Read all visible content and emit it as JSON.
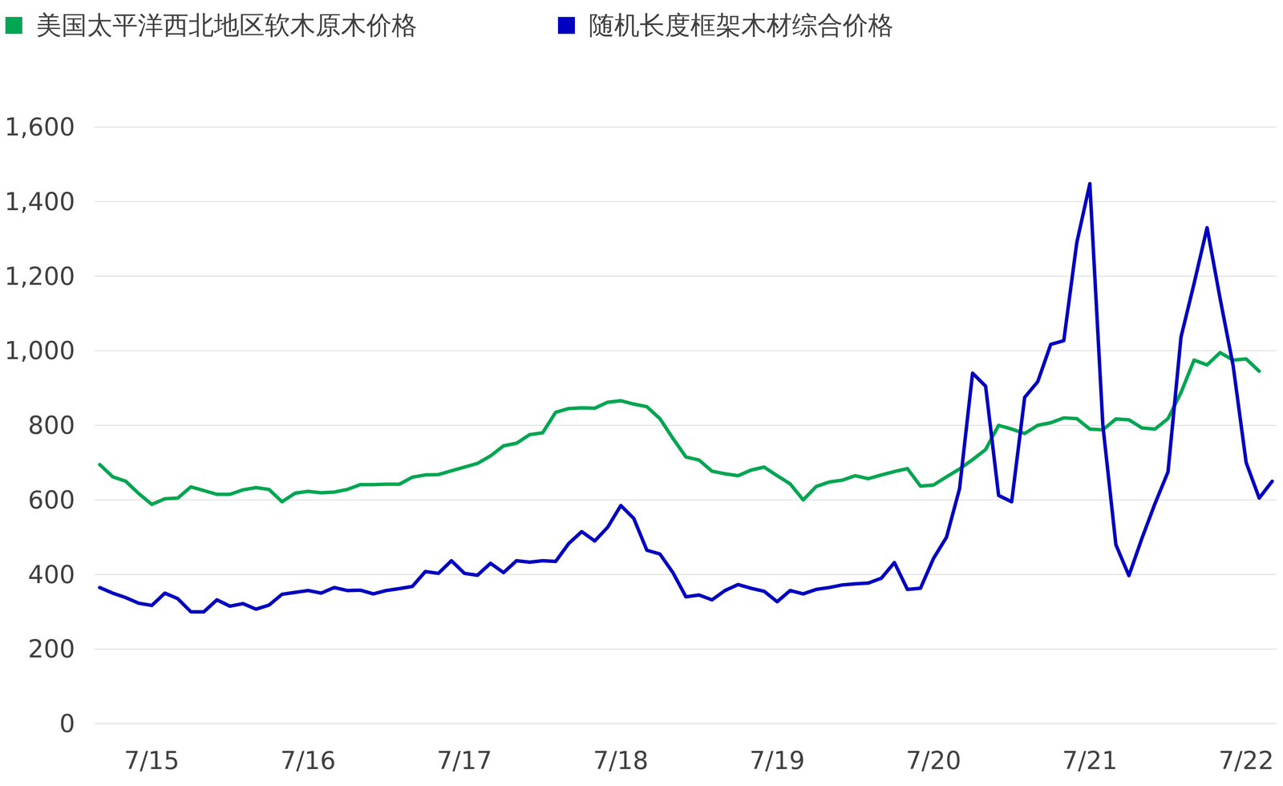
{
  "chart_data": {
    "type": "line",
    "categories": [
      null,
      null,
      null,
      null,
      "7/15",
      null,
      null,
      null,
      null,
      null,
      null,
      null,
      null,
      null,
      null,
      null,
      "7/16",
      null,
      null,
      null,
      null,
      null,
      null,
      null,
      null,
      null,
      null,
      null,
      "7/17",
      null,
      null,
      null,
      null,
      null,
      null,
      null,
      null,
      null,
      null,
      null,
      "7/18",
      null,
      null,
      null,
      null,
      null,
      null,
      null,
      null,
      null,
      null,
      null,
      "7/19",
      null,
      null,
      null,
      null,
      null,
      null,
      null,
      null,
      null,
      null,
      null,
      "7/20",
      null,
      null,
      null,
      null,
      null,
      null,
      null,
      null,
      null,
      null,
      null,
      "7/21",
      null,
      null,
      null,
      null,
      null,
      null,
      null,
      null,
      null,
      null,
      null,
      "7/22",
      null,
      null
    ],
    "series": [
      {
        "name": "美国太平洋西北地区软木原木价格",
        "color": "#00a651",
        "values": [
          695,
          662,
          650,
          617,
          588,
          603,
          605,
          635,
          625,
          615,
          615,
          627,
          633,
          628,
          595,
          618,
          623,
          619,
          621,
          628,
          641,
          641,
          642,
          642,
          661,
          667,
          668,
          678,
          688,
          698,
          718,
          745,
          752,
          775,
          780,
          835,
          845,
          847,
          846,
          862,
          866,
          857,
          850,
          818,
          765,
          715,
          707,
          677,
          670,
          665,
          680,
          688,
          665,
          643,
          600,
          636,
          648,
          653,
          665,
          657,
          667,
          676,
          684,
          637,
          640,
          662,
          683,
          708,
          735,
          800,
          790,
          778,
          800,
          807,
          820,
          818,
          790,
          788,
          817,
          815,
          793,
          790,
          818,
          888,
          975,
          962,
          995,
          975,
          978,
          945,
          null
        ]
      },
      {
        "name": "随机长度框架木材综合价格",
        "color": "#0000c0",
        "values": [
          365,
          350,
          338,
          323,
          317,
          350,
          335,
          300,
          300,
          332,
          315,
          322,
          307,
          318,
          347,
          352,
          357,
          350,
          365,
          357,
          358,
          348,
          357,
          362,
          368,
          408,
          403,
          437,
          403,
          398,
          430,
          405,
          437,
          433,
          437,
          435,
          483,
          515,
          490,
          527,
          585,
          550,
          465,
          455,
          405,
          340,
          345,
          332,
          357,
          373,
          363,
          355,
          327,
          357,
          348,
          360,
          365,
          372,
          375,
          377,
          390,
          432,
          360,
          363,
          443,
          500,
          630,
          940,
          905,
          612,
          595,
          875,
          917,
          1017,
          1027,
          1290,
          1448,
          800,
          480,
          397,
          497,
          590,
          675,
          1037,
          1180,
          1330,
          1140,
          960,
          700,
          605,
          650
        ]
      }
    ],
    "ylim": [
      0,
      1600
    ],
    "yticks": [
      0,
      200,
      400,
      600,
      800,
      {
        "value": 1000,
        "label": "1,000"
      },
      {
        "value": 1200,
        "label": "1,200"
      },
      {
        "value": 1400,
        "label": "1,400"
      },
      {
        "value": 1600,
        "label": "1,600"
      }
    ],
    "grid": true,
    "legend": "top"
  }
}
